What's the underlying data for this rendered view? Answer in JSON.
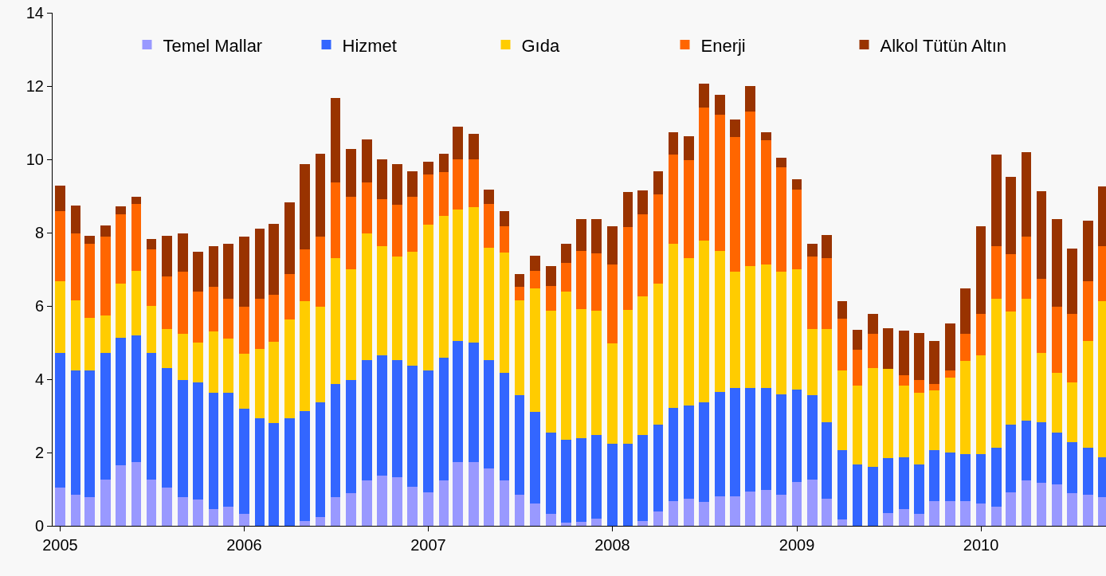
{
  "chart_data": {
    "type": "bar",
    "stacked": true,
    "x": [
      "2005-01",
      "2005-02",
      "2005-03",
      "2005-04",
      "2005-05",
      "2005-06",
      "2005-07",
      "2005-08",
      "2005-09",
      "2005-10",
      "2005-11",
      "2005-12",
      "2006-01",
      "2006-02",
      "2006-03",
      "2006-04",
      "2006-05",
      "2006-06",
      "2006-07",
      "2006-08",
      "2006-09",
      "2006-10",
      "2006-11",
      "2006-12",
      "2007-01",
      "2007-02",
      "2007-03",
      "2007-04",
      "2007-05",
      "2007-06",
      "2007-07",
      "2007-08",
      "2007-09",
      "2007-10",
      "2007-11",
      "2007-12",
      "2008-01",
      "2008-02",
      "2008-03",
      "2008-04",
      "2008-05",
      "2008-06",
      "2008-07",
      "2008-08",
      "2008-09",
      "2008-10",
      "2008-11",
      "2008-12",
      "2009-01",
      "2009-02",
      "2009-03",
      "2009-04",
      "2009-05",
      "2009-06",
      "2009-07",
      "2009-08",
      "2009-09",
      "2009-10",
      "2009-11",
      "2009-12",
      "2010-01",
      "2010-02",
      "2010-03",
      "2010-04",
      "2010-05",
      "2010-06",
      "2010-07",
      "2010-08",
      "2010-09"
    ],
    "series": [
      {
        "name": "Temel Mallar",
        "color": "#9999ff",
        "values": [
          1.05,
          0.85,
          0.78,
          1.27,
          1.65,
          1.73,
          1.27,
          1.05,
          0.78,
          0.72,
          0.45,
          0.52,
          0.32,
          0,
          0,
          0,
          0.12,
          0.25,
          0.78,
          0.9,
          1.25,
          1.38,
          1.32,
          1.07,
          0.92,
          1.25,
          1.73,
          1.73,
          1.57,
          1.25,
          0.85,
          0.6,
          0.32,
          0.08,
          0.1,
          0.2,
          null,
          null,
          0.12,
          0.4,
          0.67,
          0.74,
          0.65,
          0.8,
          0.8,
          0.93,
          0.98,
          0.85,
          1.2,
          1.27,
          0.73,
          0.18,
          0,
          0,
          0.35,
          0.45,
          0.33,
          0.68,
          0.68,
          0.68,
          0.6,
          0.53,
          0.92,
          1.25,
          1.17,
          1.12,
          0.9,
          0.85,
          0.78
        ]
      },
      {
        "name": "Hizmet",
        "color": "#3366ff",
        "values": [
          3.67,
          3.4,
          3.47,
          3.45,
          3.48,
          3.47,
          3.45,
          3.25,
          3.2,
          3.2,
          3.18,
          3.11,
          2.88,
          2.94,
          2.8,
          2.94,
          3.02,
          3.11,
          3.1,
          3.07,
          3.27,
          3.27,
          3.2,
          3.29,
          3.33,
          3.33,
          3.32,
          3.27,
          2.95,
          2.93,
          2.72,
          2.5,
          2.23,
          2.27,
          2.3,
          2.28,
          2.25,
          2.25,
          2.36,
          2.37,
          2.55,
          2.54,
          2.71,
          2.85,
          2.97,
          2.84,
          2.79,
          2.73,
          2.52,
          2.29,
          2.09,
          1.88,
          1.67,
          1.6,
          1.5,
          1.42,
          1.34,
          1.39,
          1.32,
          1.27,
          1.35,
          1.6,
          1.85,
          1.62,
          1.66,
          1.43,
          1.38,
          1.29,
          1.09
        ]
      },
      {
        "name": "Gıda",
        "color": "#ffcc00",
        "values": [
          1.96,
          1.9,
          1.43,
          1.01,
          1.47,
          1.75,
          1.28,
          1.08,
          1.27,
          1.08,
          1.67,
          1.47,
          1.5,
          1.88,
          2.23,
          2.7,
          2.99,
          2.61,
          3.42,
          3.03,
          3.45,
          2.97,
          2.83,
          3.12,
          3.97,
          3.87,
          3.58,
          3.7,
          3.06,
          3.27,
          2.58,
          3.37,
          3.32,
          4.05,
          3.52,
          3.39,
          2.72,
          3.65,
          3.79,
          3.83,
          4.48,
          4.02,
          4.42,
          3.85,
          3.16,
          3.31,
          3.37,
          3.35,
          3.28,
          1.82,
          2.56,
          2.17,
          2.16,
          2.7,
          2.43,
          1.95,
          1.95,
          1.63,
          2.05,
          2.55,
          2.7,
          4.07,
          3.08,
          3.33,
          1.89,
          1.62,
          1.64,
          2.91,
          4.26
        ]
      },
      {
        "name": "Enerji",
        "color": "#ff6600",
        "values": [
          1.9,
          1.83,
          2.02,
          2.17,
          1.9,
          1.83,
          1.55,
          1.42,
          1.68,
          1.4,
          1.22,
          1.1,
          1.28,
          1.38,
          1.27,
          1.24,
          1.42,
          1.93,
          2.06,
          1.98,
          1.41,
          1.3,
          1.41,
          1.5,
          1.36,
          1.21,
          1.37,
          1.3,
          1.2,
          0.73,
          0.38,
          0.49,
          0.67,
          0.78,
          1.58,
          1.57,
          2.15,
          2.25,
          2.23,
          2.45,
          2.43,
          2.68,
          3.64,
          3.72,
          3.67,
          4.22,
          3.39,
          2.85,
          2.18,
          1.97,
          1.92,
          1.43,
          0.97,
          0.95,
          0,
          0.28,
          0.35,
          0.18,
          0.2,
          0.75,
          1.13,
          1.42,
          1.57,
          1.7,
          2.03,
          1.81,
          1.86,
          1.63,
          1.49
        ]
      },
      {
        "name": "Alkol Tütün Altın",
        "color": "#993300",
        "values": [
          0.7,
          0.75,
          0.22,
          0.3,
          0.22,
          0.2,
          0.28,
          1.12,
          1.04,
          1.08,
          1.1,
          1.5,
          1.92,
          1.9,
          1.95,
          1.95,
          2.32,
          2.25,
          2.31,
          1.3,
          1.17,
          1.08,
          1.11,
          0.7,
          0.35,
          0.49,
          0.9,
          0.7,
          0.4,
          0.4,
          0.34,
          0.4,
          0.54,
          0.52,
          0.88,
          0.94,
          1.05,
          0.95,
          0.65,
          0.62,
          0.62,
          0.64,
          0.64,
          0.54,
          0.48,
          0.69,
          0.21,
          0.27,
          0.27,
          0.35,
          0.63,
          0.47,
          0.54,
          0.53,
          1.11,
          1.23,
          1.3,
          1.17,
          1.27,
          1.23,
          2.4,
          2.5,
          2.1,
          2.3,
          2.38,
          2.4,
          1.79,
          1.64,
          1.65
        ]
      }
    ],
    "xlim": [
      "2004-12-17",
      "2010-09-06"
    ],
    "xticks": [
      "2005",
      "2006",
      "2007",
      "2008",
      "2009",
      "2010"
    ],
    "ylim": [
      0,
      14
    ],
    "yticks": [
      0,
      2,
      4,
      6,
      8,
      10,
      12,
      14
    ],
    "grid": false,
    "legend": "top"
  }
}
